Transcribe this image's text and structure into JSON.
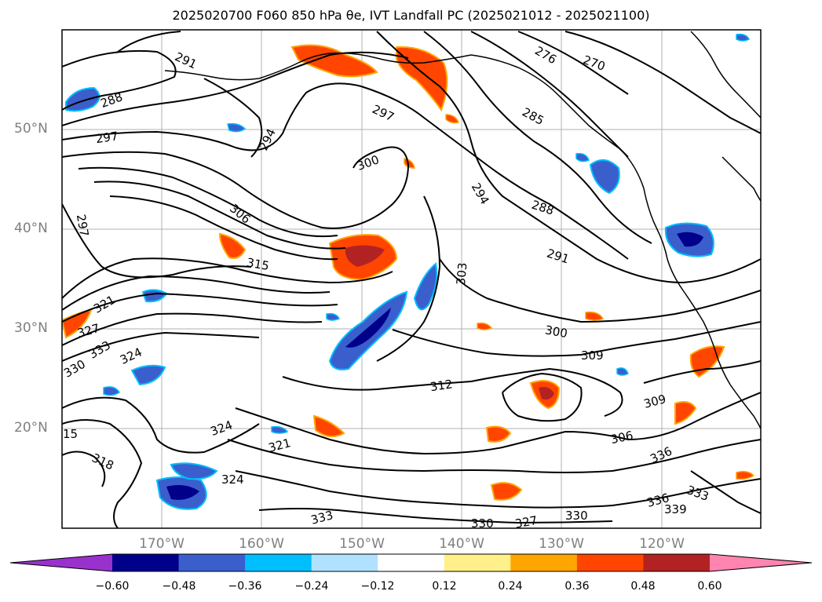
{
  "title": "2025020700 F060 850 hPa θe, IVT Landfall PC (2025021012 - 2025021100)",
  "lat_labels": [
    "50°N",
    "40°N",
    "30°N",
    "20°N"
  ],
  "lon_labels": [
    "170°W",
    "160°W",
    "150°W",
    "140°W",
    "130°W",
    "120°W"
  ],
  "colorbar": {
    "ticks": [
      "−0.60",
      "−0.48",
      "−0.36",
      "−0.24",
      "−0.12",
      "0.12",
      "0.24",
      "0.36",
      "0.48",
      "0.60"
    ],
    "colors": [
      "#9932cc",
      "#00008b",
      "#3a5fcd",
      "#00bfff",
      "#b0e2ff",
      "#ffffff",
      "#fff08a",
      "#ffa500",
      "#ff4500",
      "#b22222",
      "#ff85b0"
    ]
  },
  "contour_labels": [
    "291",
    "288",
    "297",
    "294",
    "297",
    "285",
    "270",
    "276",
    "300",
    "306",
    "297",
    "294",
    "288",
    "291",
    "315",
    "303",
    "300",
    "309",
    "321",
    "327",
    "333",
    "324",
    "330",
    "312",
    "309",
    "306",
    "324",
    "318",
    "321",
    "324",
    "333",
    "336",
    "330",
    "327",
    "330",
    "336",
    "333",
    "339",
    "15"
  ],
  "colors": {
    "land_outline": "#000000",
    "grid": "#b0b0b0",
    "positive": "#ff4500",
    "negative": "#00008b"
  }
}
